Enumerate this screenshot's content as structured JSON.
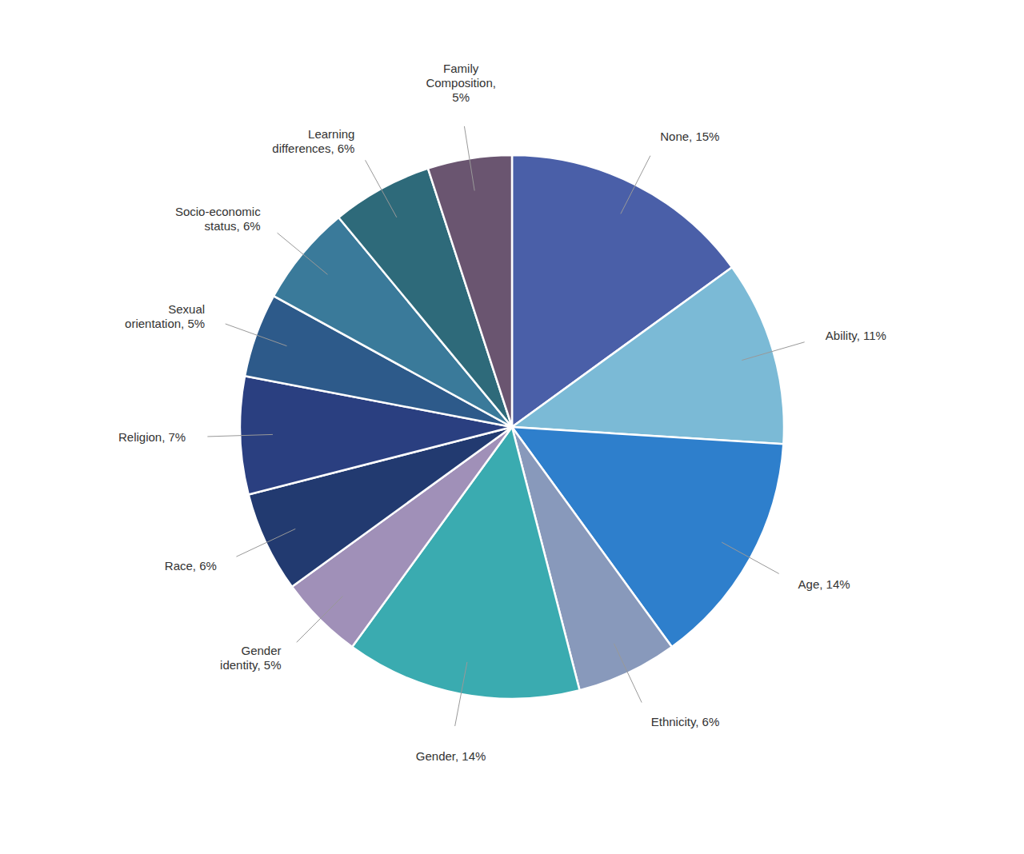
{
  "chart_data": {
    "type": "pie",
    "values": [
      15,
      11,
      14,
      6,
      14,
      5,
      6,
      7,
      5,
      6,
      6,
      5
    ],
    "value_labels": [
      "None, 15%",
      "Ability, 11%",
      "Age, 14%",
      "Ethnicity, 6%",
      "Gender, 14%",
      "Gender\nidentity, 5%",
      "Race, 6%",
      "Religion, 7%",
      "Sexual\norientation, 5%",
      "Socio-economic\nstatus, 6%",
      "Learning\ndifferences, 6%",
      "Family\nComposition,\n5%"
    ],
    "colors": [
      "#4A5FA8",
      "#7BBAD6",
      "#2E7FCC",
      "#8899BB",
      "#3AABB0",
      "#A090B8",
      "#223A70",
      "#2A3F80",
      "#2D5A8A",
      "#3A7A9A",
      "#2E6A7A",
      "#6A5570"
    ],
    "data_labels": true
  }
}
